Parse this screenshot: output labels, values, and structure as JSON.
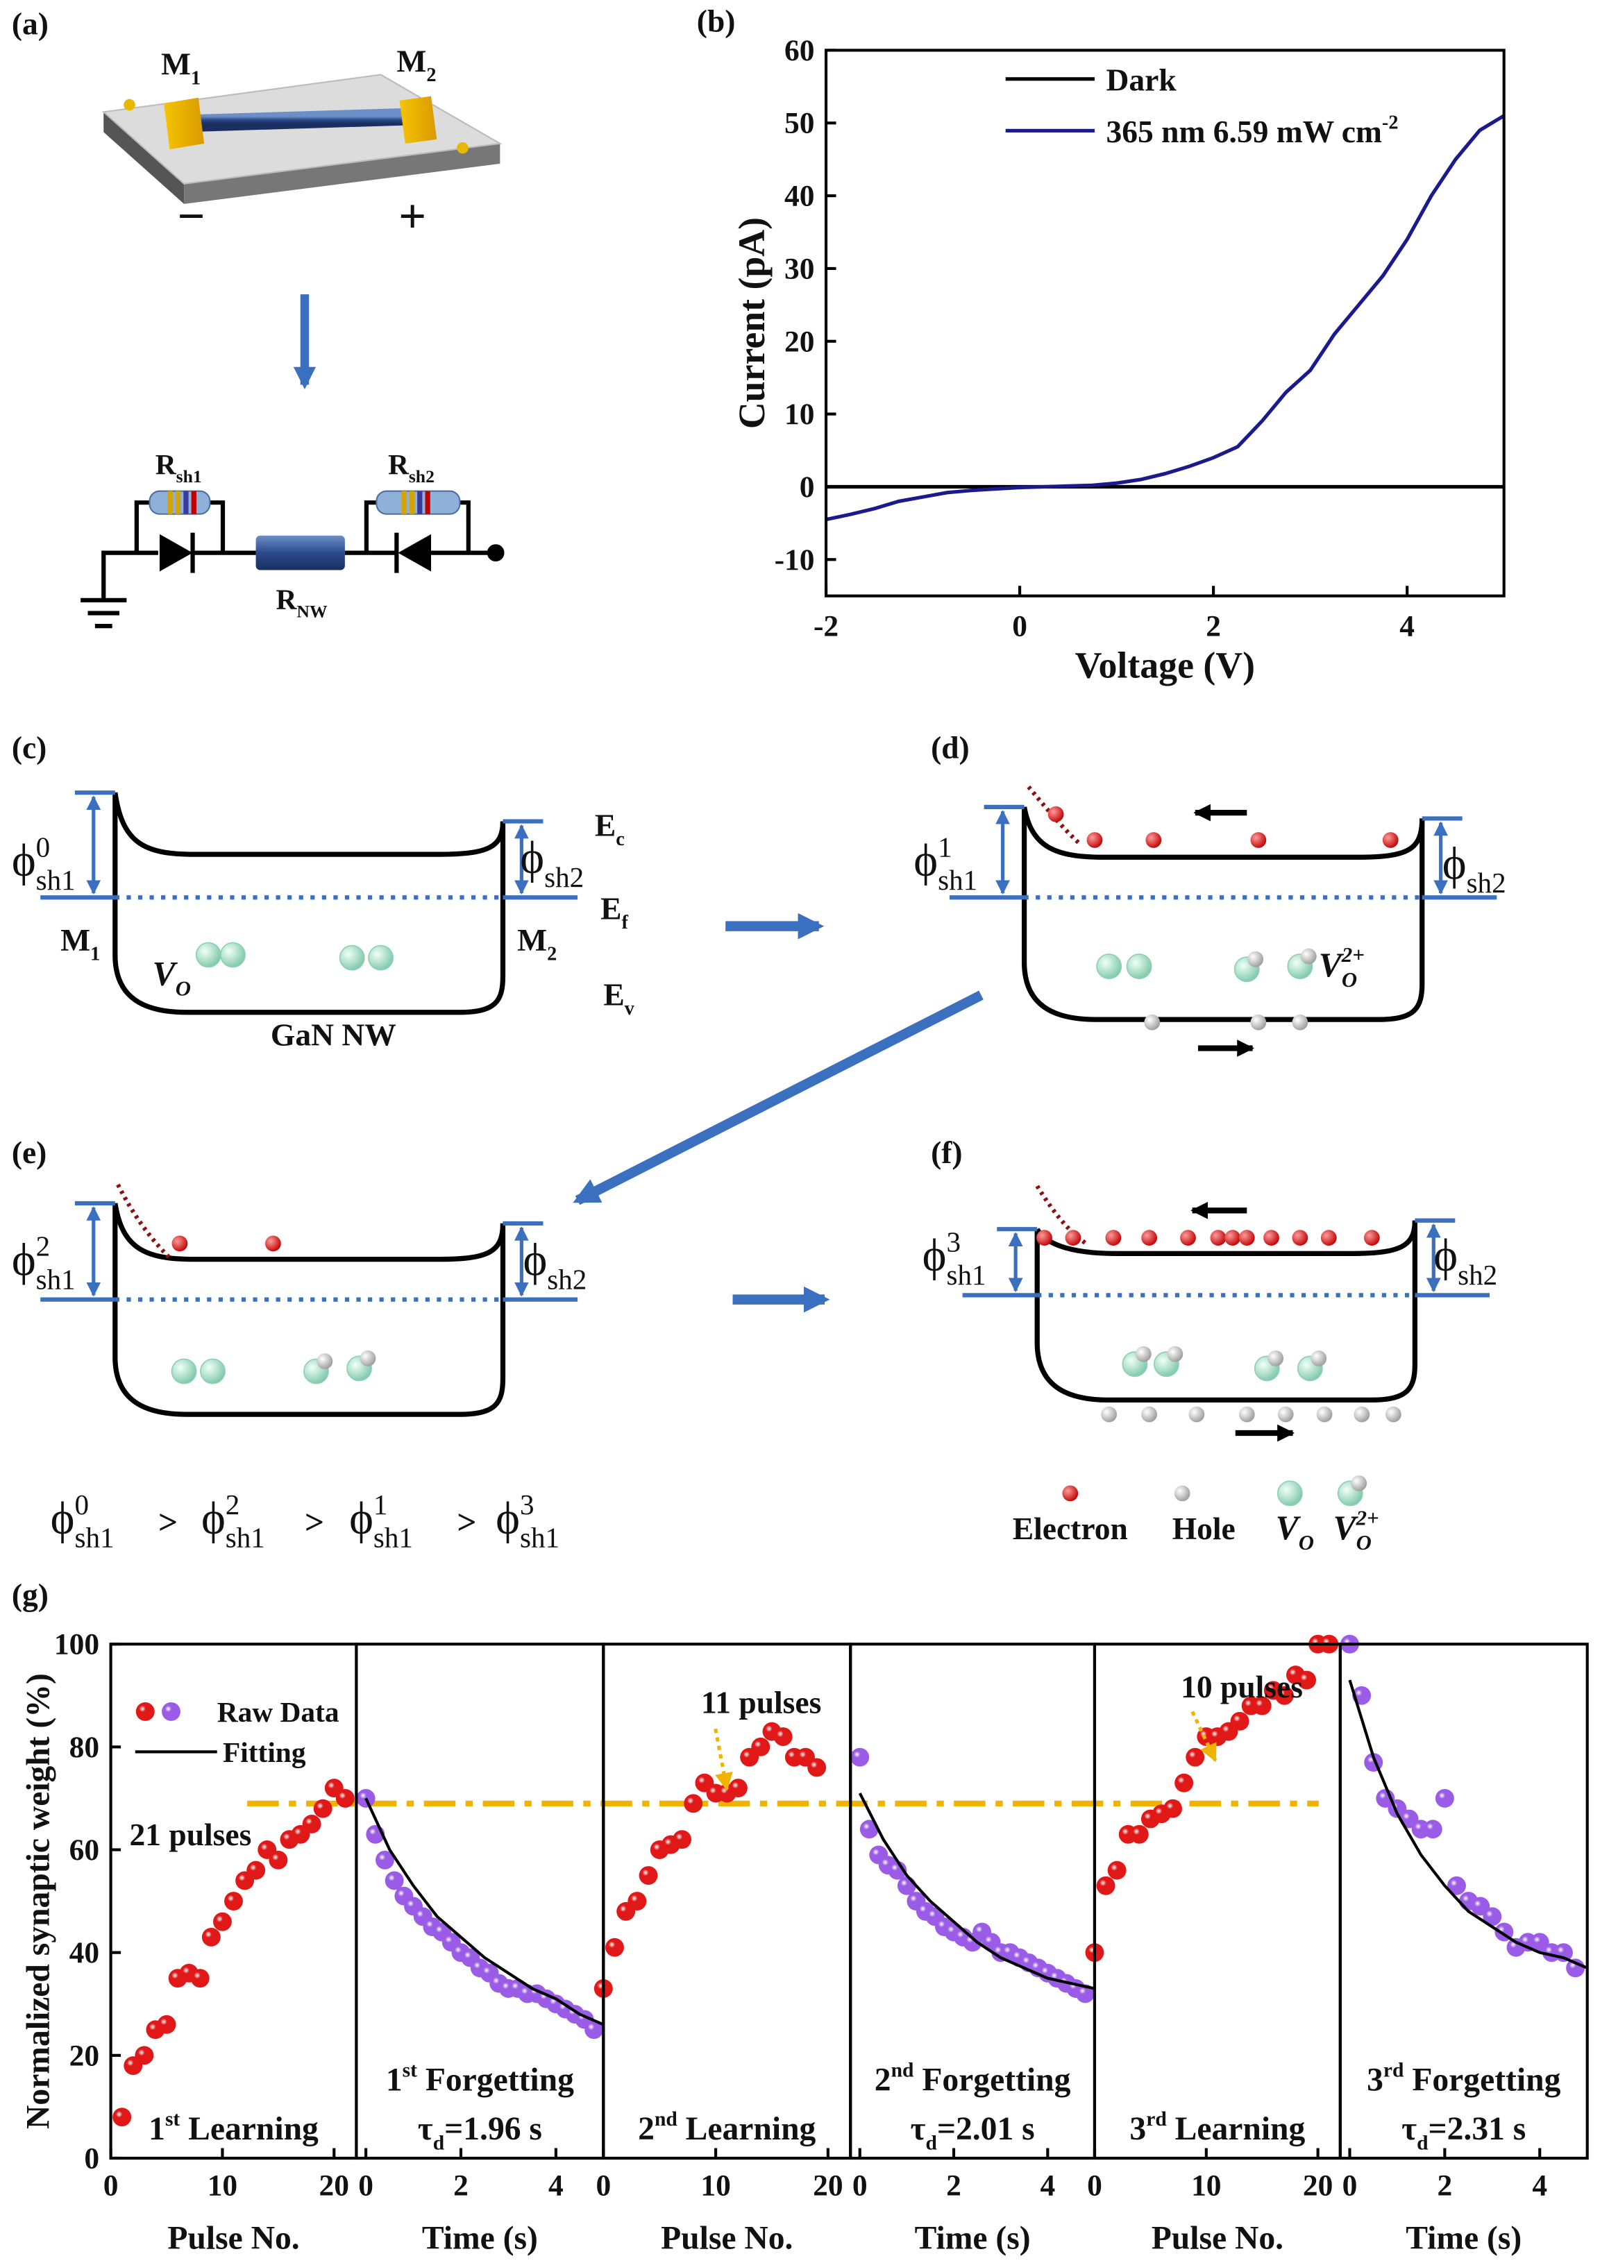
{
  "diagram": {
    "a": {
      "label": "(a)",
      "m1": [
        {
          "text": "M"
        },
        {
          "sub": "1"
        }
      ],
      "m2": [
        {
          "text": "M"
        },
        {
          "sub": "2"
        }
      ],
      "minus": "−",
      "plus": "+",
      "rsh1": [
        {
          "text": "R"
        },
        {
          "sub": "sh1"
        }
      ],
      "rsh2": [
        {
          "text": "R"
        },
        {
          "sub": "sh2"
        }
      ],
      "rnw": [
        {
          "text": "R"
        },
        {
          "sub": "NW"
        }
      ]
    },
    "c": {
      "label": "(c)",
      "phi_left": [
        {
          "text": "ϕ"
        },
        {
          "sup": "0"
        },
        {
          "sub": "sh1"
        }
      ],
      "phi_right": [
        {
          "text": "ϕ"
        },
        {
          "sub": "sh2"
        }
      ],
      "ec": [
        {
          "text": "E"
        },
        {
          "sub": "c"
        }
      ],
      "ef": [
        {
          "text": "E"
        },
        {
          "sub": "f"
        }
      ],
      "ev": [
        {
          "text": "E"
        },
        {
          "sub": "v"
        }
      ],
      "m1": [
        {
          "text": "M"
        },
        {
          "sub": "1"
        }
      ],
      "m2": [
        {
          "text": "M"
        },
        {
          "sub": "2"
        }
      ],
      "vo": [
        {
          "text": "V"
        },
        {
          "sub": "O"
        }
      ],
      "nanowire": "GaN NW"
    },
    "d": {
      "label": "(d)",
      "phi_left": [
        {
          "text": "ϕ"
        },
        {
          "sup": "1"
        },
        {
          "sub": "sh1"
        }
      ],
      "phi_right": [
        {
          "text": "ϕ"
        },
        {
          "sub": "sh2"
        }
      ],
      "vo2": [
        {
          "text": "V"
        },
        {
          "sub": "O"
        },
        {
          "sup": "2+"
        }
      ]
    },
    "e": {
      "label": "(e)",
      "phi_left": [
        {
          "text": "ϕ"
        },
        {
          "sup": "2"
        },
        {
          "sub": "sh1"
        }
      ],
      "phi_right": [
        {
          "text": "ϕ"
        },
        {
          "sub": "sh2"
        }
      ]
    },
    "f": {
      "label": "(f)",
      "phi_left": [
        {
          "text": "ϕ"
        },
        {
          "sup": "3"
        },
        {
          "sub": "sh1"
        }
      ],
      "phi_right": [
        {
          "text": "ϕ"
        },
        {
          "sub": "sh2"
        }
      ],
      "legend": [
        "Electron",
        "Hole",
        [
          {
            "text": "V"
          },
          {
            "sub": "O"
          }
        ],
        [
          {
            "text": "V"
          },
          {
            "sub": "O"
          },
          {
            "sup": "2+"
          }
        ]
      ]
    },
    "inequality": [
      [
        {
          "text": "ϕ"
        },
        {
          "sup": "0"
        },
        {
          "sub": "sh1"
        }
      ],
      ">",
      [
        {
          "text": "ϕ"
        },
        {
          "sup": "2"
        },
        {
          "sub": "sh1"
        }
      ],
      ">",
      [
        {
          "text": "ϕ"
        },
        {
          "sup": "1"
        },
        {
          "sub": "sh1"
        }
      ],
      ">",
      [
        {
          "text": "ϕ"
        },
        {
          "sup": "3"
        },
        {
          "sub": "sh1"
        }
      ]
    ]
  },
  "chart_data": [
    {
      "type": "line",
      "label": "(b)",
      "xlabel": "Voltage (V)",
      "ylabel": "Current (pA)",
      "xlim": [
        -2,
        5
      ],
      "xticks": [
        -2,
        0,
        2,
        4
      ],
      "ylim": [
        -15,
        60
      ],
      "yticks": [
        -10,
        0,
        10,
        20,
        30,
        40,
        50,
        60
      ],
      "legend": "upper left",
      "x": [
        -2,
        -1.75,
        -1.5,
        -1.25,
        -1,
        -0.75,
        -0.5,
        -0.25,
        0,
        0.25,
        0.5,
        0.75,
        1,
        1.25,
        1.5,
        1.75,
        2,
        2.25,
        2.5,
        2.75,
        3,
        3.25,
        3.5,
        3.75,
        4,
        4.25,
        4.5,
        4.75,
        5
      ],
      "series": [
        {
          "name": "Dark",
          "color": "#000000",
          "values": [
            0,
            0,
            0,
            0,
            0,
            0,
            0,
            0,
            0,
            0,
            0,
            0,
            0,
            0,
            0,
            0,
            0,
            0,
            0,
            0,
            0,
            0,
            0,
            0,
            0,
            0,
            0,
            0,
            0
          ]
        },
        {
          "name": [
            {
              "text": "365 nm 6.59 mW cm"
            },
            {
              "sup": "-2"
            }
          ],
          "color": "#1a1a8c",
          "values": [
            -4.5,
            -3.8,
            -3,
            -2,
            -1.4,
            -0.8,
            -0.5,
            -0.3,
            -0.1,
            0,
            0.1,
            0.2,
            0.5,
            1,
            1.8,
            2.8,
            4,
            5.5,
            9,
            13,
            16,
            21,
            25,
            29,
            34,
            40,
            45,
            49,
            51
          ]
        }
      ]
    },
    {
      "type": "scatter",
      "label": "(g)",
      "subtitle": [
        {
          "text": "1"
        },
        {
          "sup": "st"
        },
        {
          "text": " Learning"
        }
      ],
      "xlabel": "Pulse No.",
      "ylabel": "Normalized synaptic weight (%)",
      "xlim": [
        0,
        22
      ],
      "xticks": [
        0,
        10,
        20
      ],
      "ylim": [
        0,
        100
      ],
      "yticks": [
        0,
        20,
        40,
        60,
        80,
        100
      ],
      "color": "#e01818",
      "x": [
        1,
        2,
        3,
        4,
        5,
        6,
        7,
        8,
        9,
        10,
        11,
        12,
        13,
        14,
        15,
        16,
        17,
        18,
        19,
        20,
        21
      ],
      "values": [
        8,
        18,
        20,
        25,
        26,
        35,
        36,
        35,
        43,
        46,
        50,
        54,
        56,
        60,
        58,
        62,
        63,
        65,
        68,
        72,
        70
      ],
      "legend": {
        "position": "upper left",
        "items": [
          "Raw Data",
          "Fitting"
        ]
      },
      "hline": 69,
      "hline_color": "#f0b400",
      "annotation": "21 pulses"
    },
    {
      "type": "scatter",
      "subtitle": [
        {
          "text": "1"
        },
        {
          "sup": "st"
        },
        {
          "text": " Forgetting"
        }
      ],
      "tau": [
        {
          "text": "τ"
        },
        {
          "sub": "d"
        },
        {
          "text": "=1.96 s"
        }
      ],
      "xlabel": "Time (s)",
      "xlim": [
        -0.2,
        5
      ],
      "xticks": [
        0,
        2,
        4
      ],
      "ylim": [
        0,
        100
      ],
      "color": "#9a5ce6",
      "x": [
        0,
        0.2,
        0.4,
        0.6,
        0.8,
        1,
        1.2,
        1.4,
        1.6,
        1.8,
        2,
        2.2,
        2.4,
        2.6,
        2.8,
        3,
        3.2,
        3.4,
        3.6,
        3.8,
        4,
        4.2,
        4.4,
        4.6,
        4.8
      ],
      "values": [
        70,
        63,
        58,
        54,
        51,
        49,
        47,
        45,
        44,
        42,
        40,
        39,
        37,
        36,
        34,
        33,
        33,
        32,
        32,
        31,
        30,
        29,
        28,
        27,
        25
      ],
      "fit": {
        "x": [
          0,
          0.5,
          1,
          1.5,
          2,
          2.5,
          3,
          3.5,
          4,
          4.5,
          5
        ],
        "values": [
          70,
          60,
          53,
          47,
          43,
          39,
          36,
          33,
          31,
          28,
          26
        ]
      },
      "fit_color": "#000000"
    },
    {
      "type": "scatter",
      "subtitle": [
        {
          "text": "2"
        },
        {
          "sup": "nd"
        },
        {
          "text": " Learning"
        }
      ],
      "xlabel": "Pulse No.",
      "xlim": [
        0,
        22
      ],
      "xticks": [
        0,
        10,
        20
      ],
      "ylim": [
        0,
        100
      ],
      "color": "#e01818",
      "x": [
        0,
        1,
        2,
        3,
        4,
        5,
        6,
        7,
        8,
        9,
        10,
        11,
        12,
        13,
        14,
        15,
        16,
        17,
        18,
        19
      ],
      "values": [
        33,
        41,
        48,
        50,
        55,
        60,
        61,
        62,
        69,
        73,
        71,
        71,
        72,
        78,
        80,
        83,
        82,
        78,
        78,
        76
      ],
      "annotation": "11 pulses"
    },
    {
      "type": "scatter",
      "subtitle": [
        {
          "text": "2"
        },
        {
          "sup": "nd"
        },
        {
          "text": " Forgetting"
        }
      ],
      "tau": [
        {
          "text": "τ"
        },
        {
          "sub": "d"
        },
        {
          "text": "=2.01 s"
        }
      ],
      "xlabel": "Time (s)",
      "xlim": [
        -0.2,
        5
      ],
      "xticks": [
        0,
        2,
        4
      ],
      "ylim": [
        0,
        100
      ],
      "color": "#9a5ce6",
      "x": [
        0,
        0.2,
        0.4,
        0.6,
        0.8,
        1,
        1.2,
        1.4,
        1.6,
        1.8,
        2,
        2.2,
        2.4,
        2.6,
        2.8,
        3,
        3.2,
        3.4,
        3.6,
        3.8,
        4,
        4.2,
        4.4,
        4.6,
        4.8
      ],
      "values": [
        78,
        64,
        59,
        57,
        56,
        53,
        50,
        48,
        47,
        45,
        44,
        43,
        42,
        44,
        42,
        40,
        40,
        39,
        38,
        37,
        36,
        35,
        34,
        33,
        32
      ],
      "fit": {
        "x": [
          0,
          0.5,
          1,
          1.5,
          2,
          2.5,
          3,
          3.5,
          4,
          4.5,
          5
        ],
        "values": [
          71,
          62,
          55,
          50,
          46,
          42,
          39,
          37,
          35,
          34,
          33
        ]
      },
      "fit_color": "#000000"
    },
    {
      "type": "scatter",
      "subtitle": [
        {
          "text": "3"
        },
        {
          "sup": "rd"
        },
        {
          "text": " Learning"
        }
      ],
      "xlabel": "Pulse No.",
      "xlim": [
        0,
        22
      ],
      "xticks": [
        0,
        10,
        20
      ],
      "ylim": [
        0,
        100
      ],
      "color": "#e01818",
      "x": [
        0,
        1,
        2,
        3,
        4,
        5,
        6,
        7,
        8,
        9,
        10,
        11,
        12,
        13,
        14,
        15,
        16,
        17,
        18,
        19,
        20,
        21
      ],
      "values": [
        40,
        53,
        56,
        63,
        63,
        66,
        67,
        68,
        73,
        78,
        82,
        82,
        83,
        85,
        88,
        88,
        91,
        90,
        94,
        93,
        100,
        100
      ],
      "annotation": "10 pulses"
    },
    {
      "type": "scatter",
      "subtitle": [
        {
          "text": "3"
        },
        {
          "sup": "rd"
        },
        {
          "text": " Forgetting"
        }
      ],
      "tau": [
        {
          "text": "τ"
        },
        {
          "sub": "d"
        },
        {
          "text": "=2.31 s"
        }
      ],
      "xlabel": "Time (s)",
      "xlim": [
        -0.2,
        5
      ],
      "xticks": [
        0,
        2,
        4
      ],
      "ylim": [
        0,
        100
      ],
      "color": "#9a5ce6",
      "x": [
        0,
        0.25,
        0.5,
        0.75,
        1,
        1.25,
        1.5,
        1.75,
        2,
        2.25,
        2.5,
        2.75,
        3,
        3.25,
        3.5,
        3.75,
        4,
        4.25,
        4.5,
        4.75
      ],
      "values": [
        100,
        90,
        77,
        70,
        68,
        66,
        64,
        64,
        70,
        53,
        50,
        49,
        47,
        44,
        41,
        42,
        42,
        40,
        40,
        37
      ],
      "fit": {
        "x": [
          0,
          0.5,
          1,
          1.5,
          2,
          2.5,
          3,
          3.5,
          4,
          4.5,
          5
        ],
        "values": [
          93,
          78,
          67,
          59,
          53,
          48,
          45,
          42,
          40,
          39,
          37
        ]
      },
      "fit_color": "#000000"
    }
  ]
}
